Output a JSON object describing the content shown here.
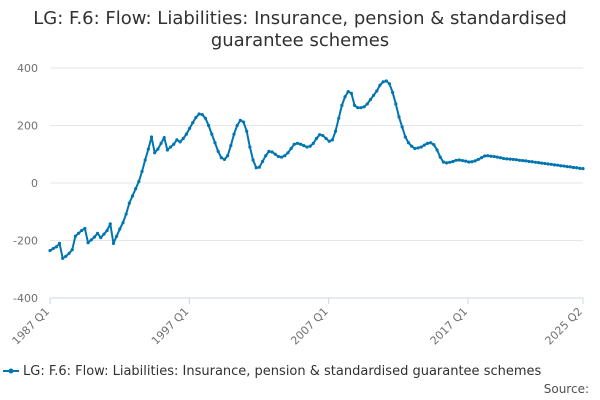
{
  "chart_data": {
    "type": "line",
    "title": "LG: F.6: Flow: Liabilities: Insurance, pension & standardised guarantee schemes",
    "title_lines": [
      "LG: F.6: Flow: Liabilities: Insurance, pension & standardised",
      "guarantee schemes"
    ],
    "xlabel": "",
    "ylabel": "",
    "ylim": [
      -400,
      400
    ],
    "yticks": [
      400,
      200,
      0,
      -200,
      -400
    ],
    "xticks": [
      "1987 Q1",
      "1997 Q1",
      "2007 Q1",
      "2017 Q1",
      "2025 Q2"
    ],
    "x_start": "1987 Q1",
    "x_end": "2025 Q2",
    "series": [
      {
        "name": "LG: F.6: Flow: Liabilities: Insurance, pension & standardised guarantee schemes",
        "color": "#0075b0",
        "values": [
          -235,
          -228,
          -222,
          -210,
          -262,
          -255,
          -245,
          -232,
          -185,
          -175,
          -165,
          -158,
          -208,
          -198,
          -188,
          -175,
          -190,
          -178,
          -165,
          -142,
          -210,
          -185,
          -160,
          -138,
          -108,
          -70,
          -45,
          -20,
          5,
          40,
          80,
          118,
          160,
          105,
          118,
          138,
          158,
          115,
          125,
          135,
          150,
          143,
          155,
          170,
          190,
          210,
          228,
          240,
          238,
          225,
          200,
          170,
          140,
          110,
          88,
          82,
          95,
          130,
          170,
          200,
          218,
          212,
          180,
          125,
          80,
          53,
          55,
          75,
          95,
          110,
          108,
          100,
          92,
          90,
          95,
          105,
          120,
          135,
          138,
          135,
          130,
          125,
          128,
          138,
          155,
          168,
          165,
          155,
          145,
          150,
          180,
          225,
          270,
          300,
          318,
          312,
          270,
          262,
          262,
          265,
          275,
          290,
          305,
          320,
          340,
          352,
          355,
          345,
          315,
          275,
          230,
          195,
          160,
          140,
          128,
          120,
          122,
          125,
          132,
          138,
          140,
          133,
          115,
          90,
          73,
          70,
          72,
          75,
          79,
          80,
          78,
          76,
          73,
          74,
          77,
          82,
          88,
          94,
          95,
          93,
          92,
          90,
          88,
          85,
          84,
          83,
          82,
          81,
          79,
          78,
          77,
          75,
          74,
          72,
          71,
          69,
          68,
          66,
          65,
          63,
          62,
          60,
          59,
          57,
          56,
          54,
          53,
          51,
          50
        ]
      }
    ],
    "legend": {
      "position": "bottom",
      "label": "LG: F.6: Flow: Liabilities: Insurance, pension & standardised guarantee schemes"
    },
    "source_label": "Source:"
  }
}
